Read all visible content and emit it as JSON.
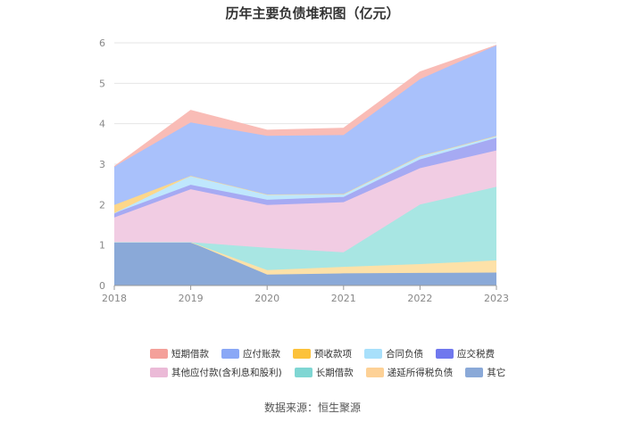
{
  "chart_data": {
    "type": "area",
    "stacked": true,
    "title": "历年主要负债堆积图（亿元）",
    "categories": [
      "2018",
      "2019",
      "2020",
      "2021",
      "2022",
      "2023"
    ],
    "ylim": [
      0,
      6
    ],
    "yticks": [
      "0",
      "1",
      "2",
      "3",
      "4",
      "5",
      "6"
    ],
    "grid": true,
    "legend_position": "bottom",
    "series": [
      {
        "name": "其它",
        "color": "#8aa9d8",
        "values": [
          1.07,
          1.07,
          0.27,
          0.3,
          0.31,
          0.32
        ]
      },
      {
        "name": "递延所得税负债",
        "color": "#fde1a8",
        "values": [
          0.0,
          0.0,
          0.11,
          0.16,
          0.22,
          0.3
        ]
      },
      {
        "name": "长期借款",
        "color": "#a8e6e3",
        "values": [
          0.0,
          0.0,
          0.55,
          0.36,
          1.47,
          1.82
        ]
      },
      {
        "name": "其他应付款(含利息和股利)",
        "color": "#f1cce3",
        "values": [
          0.61,
          1.31,
          1.06,
          1.24,
          0.9,
          0.9
        ]
      },
      {
        "name": "应交税费",
        "color": "#a6aaf3",
        "values": [
          0.11,
          0.11,
          0.13,
          0.13,
          0.22,
          0.31
        ]
      },
      {
        "name": "合同负债",
        "color": "#bfe7fd",
        "values": [
          0.0,
          0.22,
          0.13,
          0.07,
          0.08,
          0.05
        ]
      },
      {
        "name": "预收款项",
        "color": "#fdd78a",
        "values": [
          0.2,
          0.0,
          0.0,
          0.0,
          0.0,
          0.0
        ]
      },
      {
        "name": "应付账款",
        "color": "#a9c1fb",
        "values": [
          0.95,
          1.32,
          1.45,
          1.46,
          1.9,
          2.24
        ]
      },
      {
        "name": "短期借款",
        "color": "#f9bcb6",
        "values": [
          0.0,
          0.3,
          0.14,
          0.17,
          0.18,
          0.0
        ]
      }
    ]
  },
  "legend": {
    "row1": [
      {
        "name": "短期借款",
        "color": "#f4a09a"
      },
      {
        "name": "应付账款",
        "color": "#8aa8f6"
      },
      {
        "name": "预收款项",
        "color": "#fcc23b"
      },
      {
        "name": "合同负债",
        "color": "#a8e0fb"
      },
      {
        "name": "应交税费",
        "color": "#7078ee"
      }
    ],
    "row2": [
      {
        "name": "其他应付款(含利息和股利)",
        "color": "#ebbad7"
      },
      {
        "name": "长期借款",
        "color": "#7fd6d3"
      },
      {
        "name": "递延所得税负债",
        "color": "#fdd196"
      },
      {
        "name": "其它",
        "color": "#8aa9d8"
      }
    ]
  },
  "source": "数据来源：恒生聚源"
}
